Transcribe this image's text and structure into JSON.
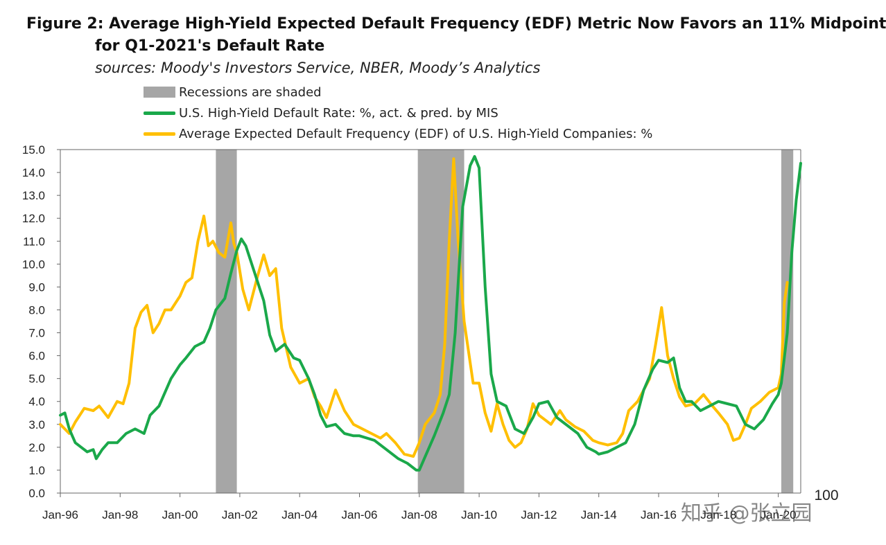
{
  "header": {
    "title_line1": "Figure 2: Average High-Yield Expected Default Frequency (EDF) Metric Now Favors an 11% Midpoint",
    "title_line2": "for Q1-2021's  Default Rate",
    "subtitle": "sources: Moody's Investors Service, NBER, Moody’s Analytics"
  },
  "colors": {
    "default_rate": "#1aa84a",
    "edf": "#ffbf00",
    "recession": "#a6a6a6"
  },
  "watermark": {
    "text": "知乎 @张立园",
    "overlay": "100"
  },
  "chart_data": {
    "type": "line",
    "title": "Average High-Yield Expected Default Frequency (EDF) Metric Now Favors an 11% Midpoint for Q1-2021's Default Rate",
    "xlabel": "",
    "ylabel": "",
    "xlim": [
      1996.0,
      2020.75
    ],
    "ylim": [
      0,
      15
    ],
    "grid": false,
    "legend_position": "top-left",
    "y_ticks": [
      "0.0",
      "1.0",
      "2.0",
      "3.0",
      "4.0",
      "5.0",
      "6.0",
      "7.0",
      "8.0",
      "9.0",
      "10.0",
      "11.0",
      "12.0",
      "13.0",
      "14.0",
      "15.0"
    ],
    "x_ticks": [
      {
        "label": "Jan-96",
        "x": 1996
      },
      {
        "label": "Jan-98",
        "x": 1998
      },
      {
        "label": "Jan-00",
        "x": 2000
      },
      {
        "label": "Jan-02",
        "x": 2002
      },
      {
        "label": "Jan-04",
        "x": 2004
      },
      {
        "label": "Jan-06",
        "x": 2006
      },
      {
        "label": "Jan-08",
        "x": 2008
      },
      {
        "label": "Jan-10",
        "x": 2010
      },
      {
        "label": "Jan-12",
        "x": 2012
      },
      {
        "label": "Jan-14",
        "x": 2014
      },
      {
        "label": "Jan-16",
        "x": 2016
      },
      {
        "label": "Jan-18",
        "x": 2018
      },
      {
        "label": "Jan-20",
        "x": 2020
      }
    ],
    "recessions": [
      {
        "label": "Recessions are shaded",
        "start": 2001.2,
        "end": 2001.9
      },
      {
        "label": "Recessions are shaded",
        "start": 2007.95,
        "end": 2009.5
      },
      {
        "label": "Recessions are shaded",
        "start": 2020.1,
        "end": 2020.5
      }
    ],
    "series": [
      {
        "name": "U.S. High-Yield Default Rate: %, act. & pred. by MIS",
        "x": [
          1996.0,
          1996.15,
          1996.3,
          1996.5,
          1996.7,
          1996.9,
          1997.1,
          1997.2,
          1997.4,
          1997.6,
          1997.9,
          1998.2,
          1998.5,
          1998.8,
          1999.0,
          1999.3,
          1999.7,
          2000.0,
          2000.2,
          2000.5,
          2000.8,
          2001.0,
          2001.2,
          2001.5,
          2001.7,
          2001.9,
          2002.05,
          2002.2,
          2002.5,
          2002.8,
          2003.0,
          2003.2,
          2003.5,
          2003.8,
          2004.0,
          2004.3,
          2004.5,
          2004.7,
          2004.9,
          2005.2,
          2005.5,
          2005.8,
          2006.0,
          2006.5,
          2006.9,
          2007.3,
          2007.6,
          2007.9,
          2008.0,
          2008.2,
          2008.5,
          2008.8,
          2009.0,
          2009.2,
          2009.45,
          2009.7,
          2009.85,
          2010.0,
          2010.2,
          2010.4,
          2010.6,
          2010.9,
          2011.2,
          2011.5,
          2011.8,
          2012.0,
          2012.3,
          2012.6,
          2012.8,
          2013.0,
          2013.3,
          2013.6,
          2013.9,
          2014.0,
          2014.3,
          2014.6,
          2014.9,
          2015.2,
          2015.5,
          2015.8,
          2016.0,
          2016.3,
          2016.5,
          2016.7,
          2016.9,
          2017.1,
          2017.4,
          2017.7,
          2018.0,
          2018.3,
          2018.6,
          2018.9,
          2019.2,
          2019.5,
          2019.8,
          2020.0,
          2020.1,
          2020.3,
          2020.45,
          2020.6,
          2020.75
        ],
        "values": [
          3.4,
          3.5,
          2.8,
          2.2,
          2.0,
          1.8,
          1.9,
          1.5,
          1.9,
          2.2,
          2.2,
          2.6,
          2.8,
          2.6,
          3.4,
          3.8,
          5.0,
          5.6,
          5.9,
          6.4,
          6.6,
          7.2,
          8.0,
          8.5,
          9.6,
          10.6,
          11.1,
          10.8,
          9.6,
          8.4,
          6.9,
          6.2,
          6.5,
          5.9,
          5.8,
          5.0,
          4.3,
          3.4,
          2.9,
          3.0,
          2.6,
          2.5,
          2.5,
          2.3,
          1.9,
          1.5,
          1.3,
          1.0,
          1.0,
          1.6,
          2.5,
          3.5,
          4.3,
          7.0,
          12.5,
          14.3,
          14.7,
          14.2,
          9.0,
          5.2,
          4.0,
          3.8,
          2.8,
          2.6,
          3.3,
          3.9,
          4.0,
          3.3,
          3.1,
          2.9,
          2.6,
          2.0,
          1.8,
          1.7,
          1.8,
          2.0,
          2.2,
          3.0,
          4.5,
          5.4,
          5.8,
          5.7,
          5.9,
          4.6,
          4.0,
          4.0,
          3.6,
          3.8,
          4.0,
          3.9,
          3.8,
          3.0,
          2.8,
          3.2,
          3.9,
          4.3,
          4.8,
          7.0,
          10.5,
          12.8,
          14.4
        ]
      },
      {
        "name": "Average Expected Default Frequency (EDF) of U.S. High-Yield Companies: %",
        "x": [
          1996.0,
          1996.3,
          1996.5,
          1996.8,
          1997.1,
          1997.3,
          1997.6,
          1997.9,
          1998.1,
          1998.3,
          1998.5,
          1998.7,
          1998.9,
          1999.1,
          1999.3,
          1999.5,
          1999.7,
          2000.0,
          2000.2,
          2000.4,
          2000.6,
          2000.8,
          2000.95,
          2001.1,
          2001.3,
          2001.5,
          2001.7,
          2001.8,
          2001.9,
          2002.1,
          2002.3,
          2002.6,
          2002.8,
          2003.0,
          2003.2,
          2003.4,
          2003.7,
          2004.0,
          2004.3,
          2004.5,
          2004.7,
          2004.9,
          2005.2,
          2005.5,
          2005.8,
          2006.1,
          2006.4,
          2006.7,
          2006.9,
          2007.2,
          2007.5,
          2007.8,
          2008.0,
          2008.2,
          2008.5,
          2008.7,
          2008.85,
          2009.0,
          2009.15,
          2009.3,
          2009.5,
          2009.8,
          2010.0,
          2010.2,
          2010.4,
          2010.6,
          2010.8,
          2011.0,
          2011.2,
          2011.4,
          2011.6,
          2011.8,
          2012.0,
          2012.2,
          2012.4,
          2012.7,
          2012.9,
          2013.2,
          2013.5,
          2013.8,
          2014.0,
          2014.3,
          2014.6,
          2014.8,
          2015.0,
          2015.3,
          2015.5,
          2015.7,
          2015.9,
          2016.1,
          2016.3,
          2016.5,
          2016.7,
          2016.9,
          2017.2,
          2017.5,
          2017.8,
          2018.0,
          2018.3,
          2018.5,
          2018.7,
          2018.9,
          2019.1,
          2019.4,
          2019.7,
          2020.0,
          2020.1,
          2020.2,
          2020.3
        ],
        "values": [
          3.0,
          2.6,
          3.1,
          3.7,
          3.6,
          3.8,
          3.3,
          4.0,
          3.9,
          4.8,
          7.2,
          7.9,
          8.2,
          7.0,
          7.4,
          8.0,
          8.0,
          8.6,
          9.2,
          9.4,
          11.0,
          12.1,
          10.8,
          11.0,
          10.5,
          10.3,
          11.8,
          10.9,
          10.5,
          8.9,
          8.0,
          9.5,
          10.4,
          9.5,
          9.8,
          7.2,
          5.5,
          4.8,
          5.0,
          4.2,
          3.8,
          3.3,
          4.5,
          3.6,
          3.0,
          2.8,
          2.6,
          2.4,
          2.6,
          2.2,
          1.7,
          1.6,
          2.2,
          3.0,
          3.5,
          4.3,
          6.5,
          11.0,
          14.6,
          11.0,
          7.5,
          4.8,
          4.8,
          3.5,
          2.7,
          3.9,
          3.0,
          2.3,
          2.0,
          2.2,
          2.8,
          3.9,
          3.4,
          3.2,
          3.0,
          3.6,
          3.2,
          2.9,
          2.7,
          2.3,
          2.2,
          2.1,
          2.2,
          2.6,
          3.6,
          4.0,
          4.5,
          5.0,
          6.5,
          8.1,
          6.0,
          5.0,
          4.2,
          3.8,
          3.9,
          4.3,
          3.8,
          3.5,
          3.0,
          2.3,
          2.4,
          3.0,
          3.7,
          4.0,
          4.4,
          4.6,
          5.2,
          8.3,
          9.2
        ]
      }
    ]
  }
}
